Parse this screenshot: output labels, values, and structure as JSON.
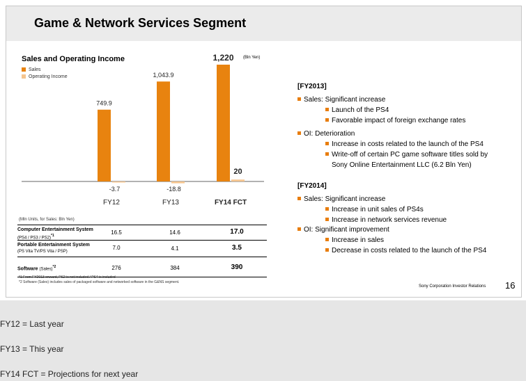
{
  "slide": {
    "title": "Game & Network Services Segment",
    "chart_title": "Sales and Operating Income",
    "legend": [
      "Sales",
      "Operating Income"
    ],
    "unit_note": "(Bln Yen)",
    "colors": {
      "sales": "#e8830f",
      "oi": "#f5c58f",
      "bullet": "#e87d0d",
      "title_band": "#ebebeb"
    }
  },
  "chart_data": {
    "type": "bar",
    "categories": [
      "FY12",
      "FY13",
      "FY14 FCT"
    ],
    "series": [
      {
        "name": "Sales",
        "values": [
          749.9,
          1043.9,
          1220
        ]
      },
      {
        "name": "Operating Income",
        "values": [
          -3.7,
          -18.8,
          20
        ]
      }
    ],
    "value_labels": {
      "sales": [
        "749.9",
        "1,043.9",
        "1,220"
      ],
      "oi": [
        "-3.7",
        "-18.8",
        "20"
      ]
    },
    "ylim": [
      -50,
      1300
    ]
  },
  "table": {
    "note": "(Mln Units, for Sales: Bln Yen)",
    "rows": [
      {
        "label": "Computer Entertainment System",
        "sub": "(PS4 / PS3 / PS2)",
        "sup": "*1",
        "fy12": "16.5",
        "fy13": "14.6",
        "fy14": "17.0"
      },
      {
        "label": "Portable Entertainment System",
        "sub": "(PS Vita TV/PS Vita / PSP)",
        "sup": "",
        "fy12": "7.0",
        "fy13": "4.1",
        "fy14": "3.5"
      },
      {
        "label": "Software",
        "sub": "(Sales)",
        "sup": "*2",
        "fy12": "276",
        "fy13": "384",
        "fy14": "390"
      }
    ],
    "footnotes": [
      "*1 From FY2013 onward, PS2 is not included / PS4 is included",
      "*2 Software (Sales) includes sales of packaged software and networked software in the G&NS segment."
    ]
  },
  "right": {
    "fy2013": {
      "head": "[FY2013]",
      "sales": "Sales: Significant increase",
      "sales_items": [
        "Launch of the PS4",
        "Favorable impact of foreign exchange rates"
      ],
      "oi": "OI: Deterioration",
      "oi_items": [
        "Increase in costs related to the launch of the PS4",
        "Write-off of certain PC game software titles sold by"
      ],
      "oi_cont": "Sony Online Entertainment LLC  (6.2 Bln Yen)"
    },
    "fy2014": {
      "head": "[FY2014]",
      "sales": "Sales: Significant increase",
      "sales_items": [
        "Increase in unit sales of PS4s",
        "Increase in network services revenue"
      ],
      "oi": "OI: Significant improvement",
      "oi_items": [
        "Increase in sales",
        "Decrease in costs related to the launch of the PS4"
      ]
    }
  },
  "footer": {
    "company": "Sony Corporation  Investor Relations",
    "page": "16"
  },
  "bottom": [
    "FY12 = Last year",
    "FY13 = This year",
    "FY14 FCT = Projections for next year"
  ]
}
